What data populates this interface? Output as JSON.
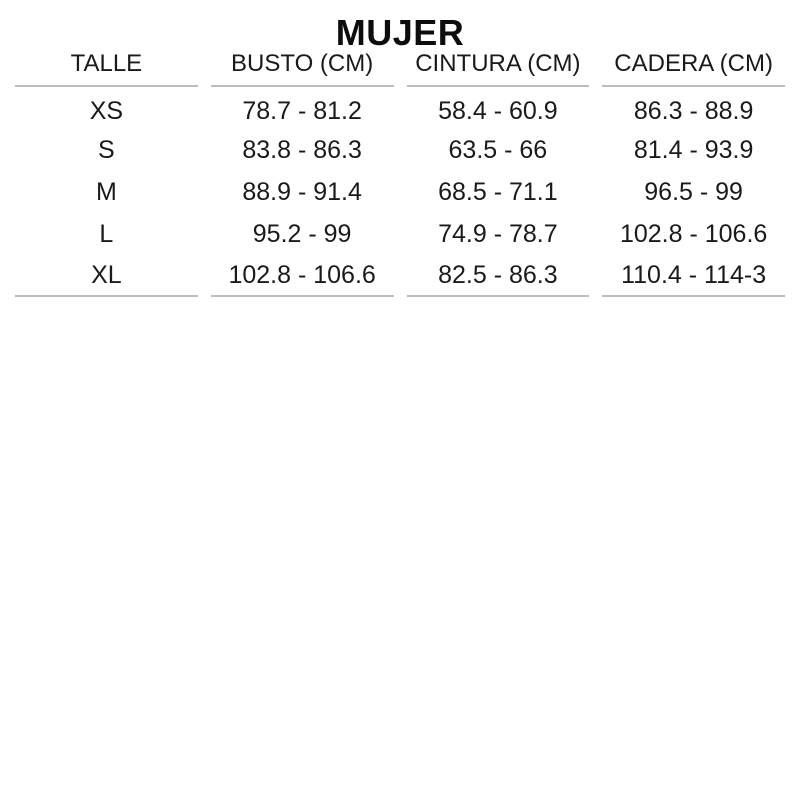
{
  "title": "MUJER",
  "table": {
    "columns": [
      "TALLE",
      "BUSTO (CM)",
      "CINTURA (CM)",
      "CADERA (CM)"
    ],
    "rows": [
      {
        "talle": "XS",
        "busto": "78.7 - 81.2",
        "cintura": "58.4 - 60.9",
        "cadera": "86.3 - 88.9"
      },
      {
        "talle": "S",
        "busto": "83.8 - 86.3",
        "cintura": "63.5 - 66",
        "cadera": "81.4 - 93.9"
      },
      {
        "talle": "M",
        "busto": "88.9 - 91.4",
        "cintura": "68.5 - 71.1",
        "cadera": "96.5 - 99"
      },
      {
        "talle": "L",
        "busto": "95.2 - 99",
        "cintura": "74.9 - 78.7",
        "cadera": "102.8 - 106.6"
      },
      {
        "talle": "XL",
        "busto": "102.8 - 106.6",
        "cintura": "82.5 - 86.3",
        "cadera": "110.4 - 114-3"
      }
    ]
  },
  "colors": {
    "background": "#ffffff",
    "text": "#1a1a1a",
    "title": "#0d0d0d",
    "rule": "#bdbdbd"
  }
}
